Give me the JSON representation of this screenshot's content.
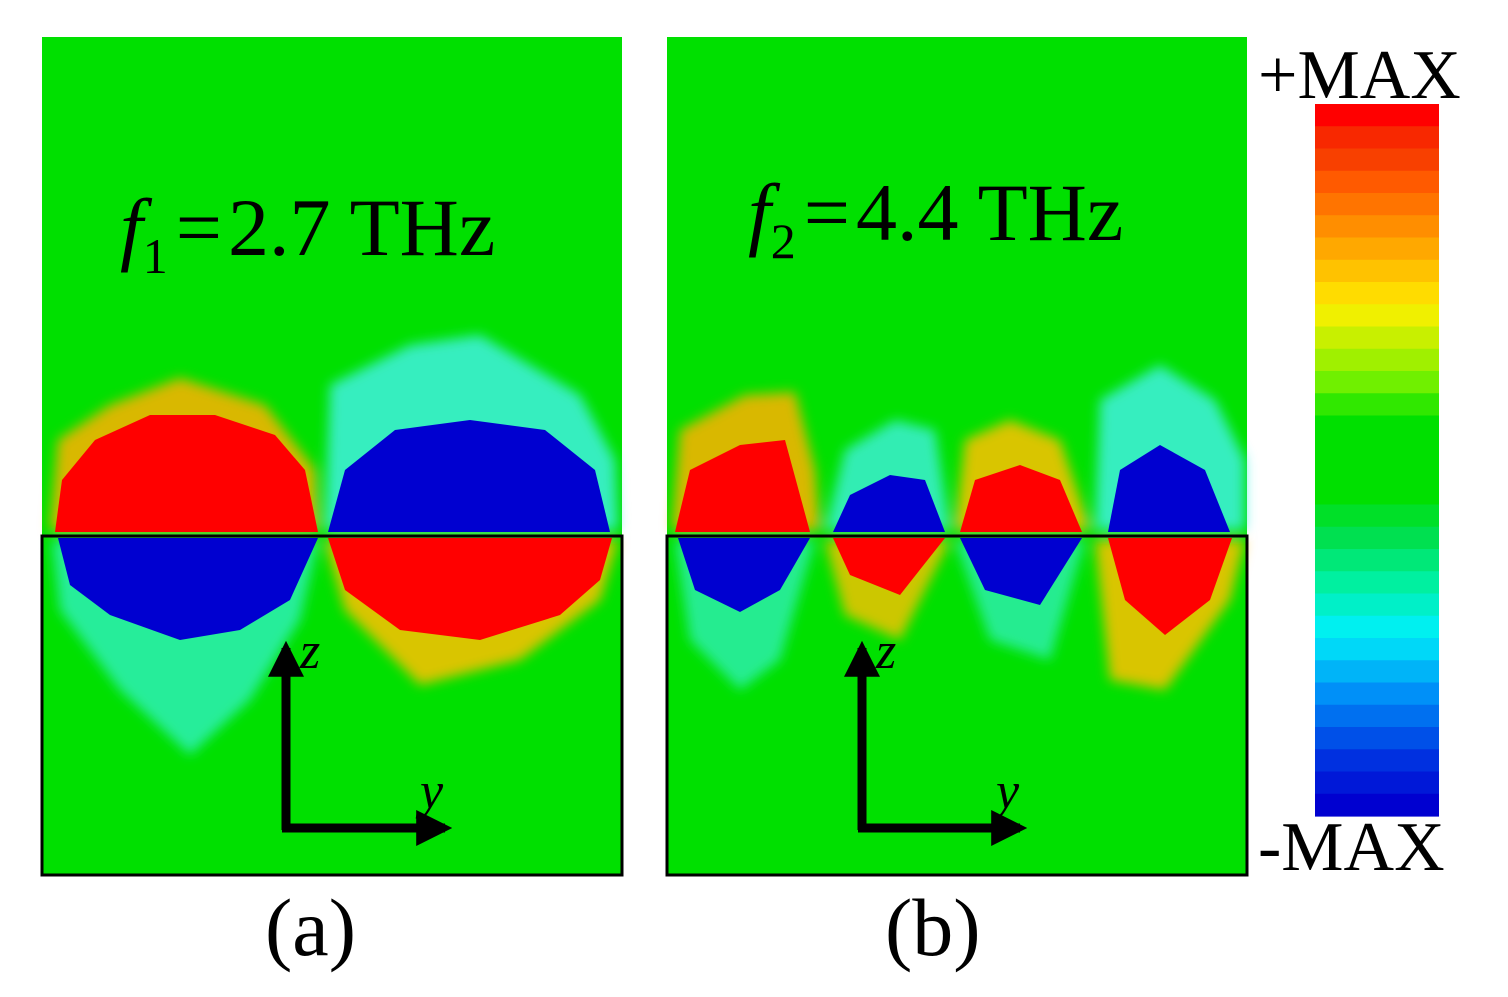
{
  "panels": [
    {
      "id": "a",
      "caption": "(a)",
      "freq_symbol": "f",
      "freq_subscript": "1",
      "freq_equals": "=",
      "freq_value": "2.7 THz"
    },
    {
      "id": "b",
      "caption": "(b)",
      "freq_symbol": "f",
      "freq_subscript": "2",
      "freq_equals": "=",
      "freq_value": "4.4 THz"
    }
  ],
  "axes": {
    "vertical": "z",
    "horizontal": "y"
  },
  "colorbar": {
    "max_label": "+MAX",
    "min_label": "-MAX",
    "colors_top_to_bottom": [
      "#ff0000",
      "#f82800",
      "#f84000",
      "#ff5a00",
      "#ff7400",
      "#ff8e00",
      "#ffa800",
      "#ffc200",
      "#ffdc00",
      "#f0f000",
      "#c8f000",
      "#a0f000",
      "#70f000",
      "#30e800",
      "#00e000",
      "#00e000",
      "#00e000",
      "#00e000",
      "#00e028",
      "#00e050",
      "#00e878",
      "#00f0a0",
      "#00f0c8",
      "#00f0f0",
      "#00d8f8",
      "#00b4f8",
      "#0090f8",
      "#0070f0",
      "#0050e8",
      "#0030e0",
      "#0018d8",
      "#0000d0"
    ]
  },
  "field_colors": {
    "background": "#00e000",
    "positive": "#ff0000",
    "negative": "#0000d0"
  }
}
